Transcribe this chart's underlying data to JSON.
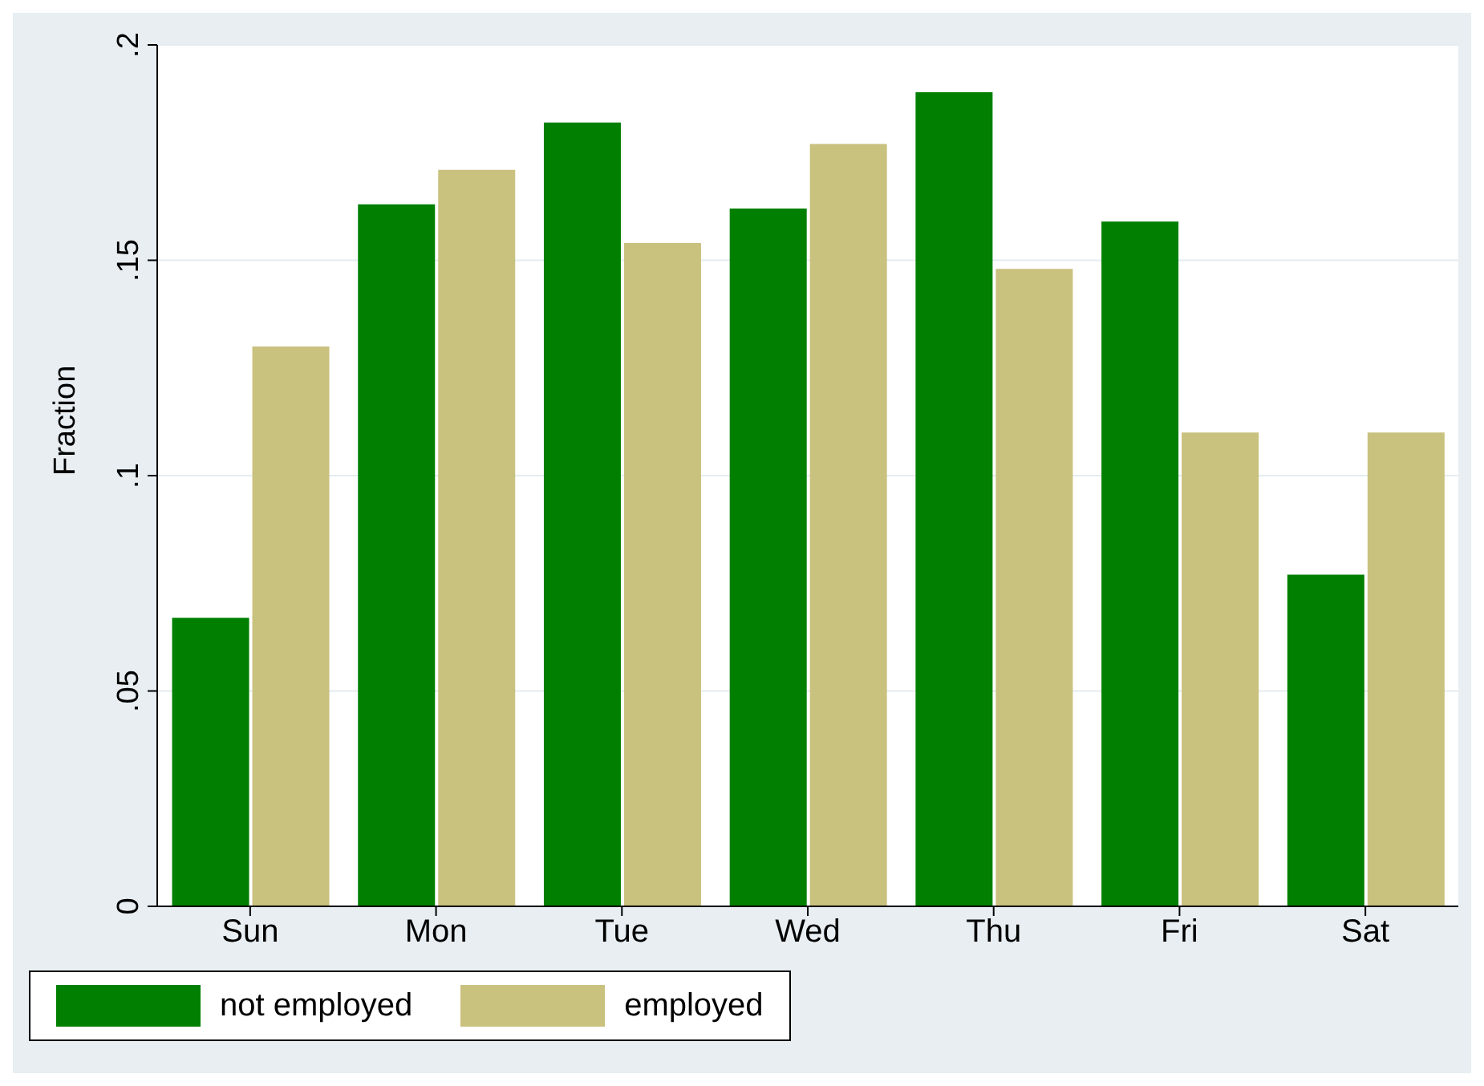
{
  "chart_data": {
    "type": "bar",
    "ylabel": "Fraction",
    "categories": [
      "Sun",
      "Mon",
      "Tue",
      "Wed",
      "Thu",
      "Fri",
      "Sat"
    ],
    "series": [
      {
        "name": "not employed",
        "color": "#007f00",
        "values": [
          0.067,
          0.163,
          0.182,
          0.162,
          0.189,
          0.159,
          0.077
        ]
      },
      {
        "name": "employed",
        "color": "#c9c17e",
        "values": [
          0.13,
          0.171,
          0.154,
          0.177,
          0.148,
          0.11,
          0.11
        ]
      }
    ],
    "ylim": [
      0,
      0.2
    ],
    "yticks": [
      0,
      {
        "value": 0.05,
        "label": ".05"
      },
      {
        "value": 0.1,
        "label": ".1"
      },
      {
        "value": 0.15,
        "label": ".15"
      },
      {
        "value": 0.2,
        "label": ".2"
      }
    ],
    "grid": "y",
    "legend": "bottom"
  }
}
